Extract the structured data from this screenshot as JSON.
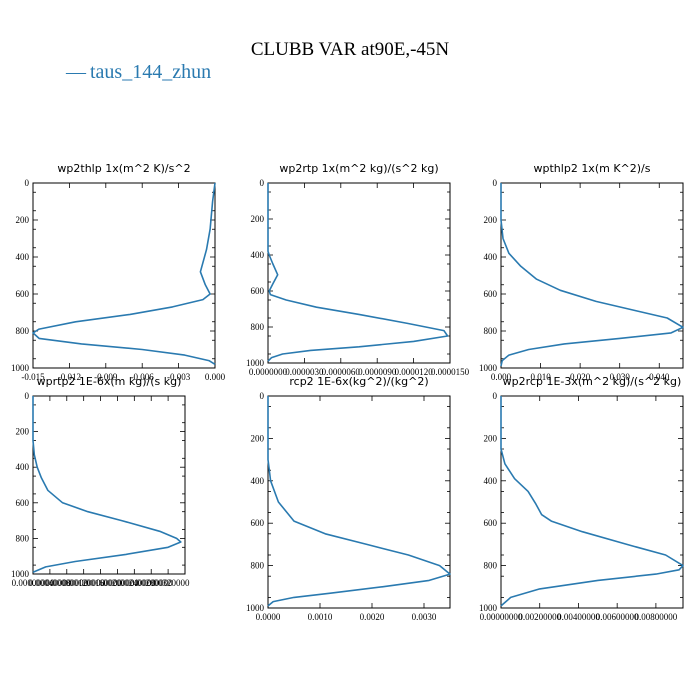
{
  "figure": {
    "title": "CLUBB VAR at90E,-45N",
    "legend": {
      "entries": [
        {
          "symbol": "—",
          "label": "taus_144_zhun"
        }
      ],
      "color": "#2a7ab0"
    }
  },
  "chart_data": [
    {
      "type": "line",
      "title": "wp2thlp   1x(m^2 K)/s^2",
      "xlim": [
        -0.015,
        0.0
      ],
      "ylim": [
        1000,
        0
      ],
      "y_inverted": true,
      "xticks": [
        -0.015,
        -0.012,
        -0.009,
        -0.006,
        -0.003,
        0.0
      ],
      "xtick_labels": [
        "-0.015",
        "-0.012",
        "-0.009",
        "-0.006",
        "-0.003",
        "0.000"
      ],
      "yticks": [
        0,
        200,
        400,
        600,
        800,
        1000
      ],
      "ytick_labels": [
        "0",
        "200",
        "400",
        "600",
        "800",
        "1000"
      ],
      "series": [
        {
          "x": [
            0,
            -0.0002,
            -0.0004,
            -0.0007,
            -0.0012,
            -0.0008,
            -0.0004,
            -0.001,
            -0.0035,
            -0.007,
            -0.0115,
            -0.0145,
            -0.015,
            -0.0145,
            -0.011,
            -0.006,
            -0.0025,
            -0.0005,
            0
          ],
          "y": [
            0,
            100,
            250,
            360,
            480,
            550,
            600,
            630,
            670,
            710,
            750,
            790,
            810,
            840,
            870,
            900,
            930,
            960,
            980
          ]
        }
      ]
    },
    {
      "type": "line",
      "title": "wp2rtp   1x(m^2 kg)/(s^2 kg)",
      "xlim": [
        0.0,
        1.5e-05
      ],
      "ylim": [
        1000,
        0
      ],
      "y_inverted": true,
      "xticks": [
        0.0,
        3e-06,
        6e-06,
        9e-06,
        1.2e-05,
        1.5e-05
      ],
      "xtick_labels": [
        "0.0000000",
        "0.0000030",
        "0.0000060",
        "0.0000090",
        "0.0000120",
        "0.0000150"
      ],
      "yticks": [
        0,
        200,
        400,
        600,
        800,
        1000
      ],
      "ytick_labels": [
        "0",
        "200",
        "400",
        "600",
        "800",
        "1000"
      ],
      "series": [
        {
          "x": [
            0,
            0,
            1e-07,
            4e-07,
            8e-07,
            4e-07,
            1e-07,
            2e-07,
            1.5e-06,
            4e-06,
            7.5e-06,
            1.15e-05,
            1.45e-05,
            1.48e-05,
            1.2e-05,
            7.5e-06,
            3.5e-06,
            1.2e-06,
            3e-07,
            0
          ],
          "y": [
            0,
            380,
            400,
            450,
            510,
            560,
            600,
            620,
            650,
            690,
            730,
            780,
            820,
            850,
            880,
            910,
            930,
            950,
            970,
            990
          ]
        }
      ]
    },
    {
      "type": "line",
      "title": "wpthlp2   1x(m K^2)/s",
      "xlim": [
        0.0,
        0.046
      ],
      "ylim": [
        1000,
        0
      ],
      "y_inverted": true,
      "xticks": [
        0.0,
        0.01,
        0.02,
        0.03,
        0.04
      ],
      "xtick_labels": [
        "0.000",
        "0.010",
        "0.020",
        "0.030",
        "0.040"
      ],
      "yticks": [
        0,
        200,
        400,
        600,
        800,
        1000
      ],
      "ytick_labels": [
        "0",
        "200",
        "400",
        "600",
        "800",
        "1000"
      ],
      "series": [
        {
          "x": [
            0,
            0,
            0.0005,
            0.002,
            0.005,
            0.009,
            0.015,
            0.024,
            0.034,
            0.042,
            0.046,
            0.043,
            0.03,
            0.016,
            0.007,
            0.002,
            0.0003,
            0
          ],
          "y": [
            0,
            200,
            300,
            380,
            450,
            520,
            580,
            640,
            690,
            730,
            780,
            810,
            840,
            870,
            900,
            930,
            960,
            990
          ]
        }
      ]
    },
    {
      "type": "line",
      "title": "wprtp2   1E-6x(m kg)/(s kg)",
      "xlim": [
        0.0,
        0.0036
      ],
      "ylim": [
        1000,
        0
      ],
      "y_inverted": true,
      "xticks": [
        0.0,
        0.0004,
        0.0008,
        0.0012,
        0.0016,
        0.002,
        0.0024,
        0.0028,
        0.0032
      ],
      "xtick_labels": [
        "0.00000000",
        "0.00040000",
        "0.00080000",
        "0.00120000",
        "0.00160000",
        "0.00200000",
        "0.00240000",
        "0.00280000",
        "0.00320000"
      ],
      "yticks": [
        0,
        200,
        400,
        600,
        800,
        1000
      ],
      "ytick_labels": [
        "0",
        "200",
        "400",
        "600",
        "800",
        "1000"
      ],
      "series": [
        {
          "x": [
            0,
            0,
            3e-05,
            0.0001,
            0.0002,
            0.00035,
            0.0007,
            0.0013,
            0.0021,
            0.003,
            0.0034,
            0.0035,
            0.0032,
            0.0022,
            0.001,
            0.0003,
            0
          ],
          "y": [
            0,
            250,
            330,
            400,
            460,
            530,
            600,
            650,
            700,
            760,
            800,
            820,
            850,
            890,
            930,
            960,
            990
          ]
        }
      ]
    },
    {
      "type": "line",
      "title": "rcp2   1E-6x(kg^2)/(kg^2)",
      "xlim": [
        0.0,
        0.0035
      ],
      "ylim": [
        1000,
        0
      ],
      "y_inverted": true,
      "xticks": [
        0.0,
        0.001,
        0.002,
        0.003
      ],
      "xtick_labels": [
        "0.0000",
        "0.0010",
        "0.0020",
        "0.0030"
      ],
      "yticks": [
        0,
        200,
        400,
        600,
        800,
        1000
      ],
      "ytick_labels": [
        "0",
        "200",
        "400",
        "600",
        "800",
        "1000"
      ],
      "series": [
        {
          "x": [
            0,
            0,
            5e-05,
            0.0002,
            0.0005,
            0.0011,
            0.0019,
            0.0027,
            0.0033,
            0.0035,
            0.0031,
            0.0022,
            0.0012,
            0.0005,
            0.0001,
            0
          ],
          "y": [
            0,
            300,
            400,
            500,
            590,
            650,
            700,
            750,
            800,
            840,
            870,
            900,
            930,
            950,
            970,
            990
          ]
        }
      ]
    },
    {
      "type": "line",
      "title": "wp2rcp   1E-3x(m^2 kg)/(s^2 kg)",
      "xlim": [
        0.0,
        0.0094
      ],
      "ylim": [
        1000,
        0
      ],
      "y_inverted": true,
      "xticks": [
        0.0,
        0.002,
        0.004,
        0.006,
        0.008
      ],
      "xtick_labels": [
        "0.00000000",
        "0.00200000",
        "0.00400000",
        "0.00600000",
        "0.00800000"
      ],
      "yticks": [
        0,
        200,
        400,
        600,
        800,
        1000
      ],
      "ytick_labels": [
        "0",
        "200",
        "400",
        "600",
        "800",
        "1000"
      ],
      "series": [
        {
          "x": [
            0,
            0,
            0.0002,
            0.0007,
            0.0014,
            0.0018,
            0.0021,
            0.0026,
            0.0042,
            0.0065,
            0.0085,
            0.0094,
            0.0092,
            0.008,
            0.005,
            0.002,
            0.0005,
            0
          ],
          "y": [
            0,
            250,
            320,
            390,
            450,
            510,
            560,
            590,
            640,
            700,
            750,
            800,
            820,
            840,
            870,
            910,
            950,
            990
          ]
        }
      ]
    }
  ]
}
